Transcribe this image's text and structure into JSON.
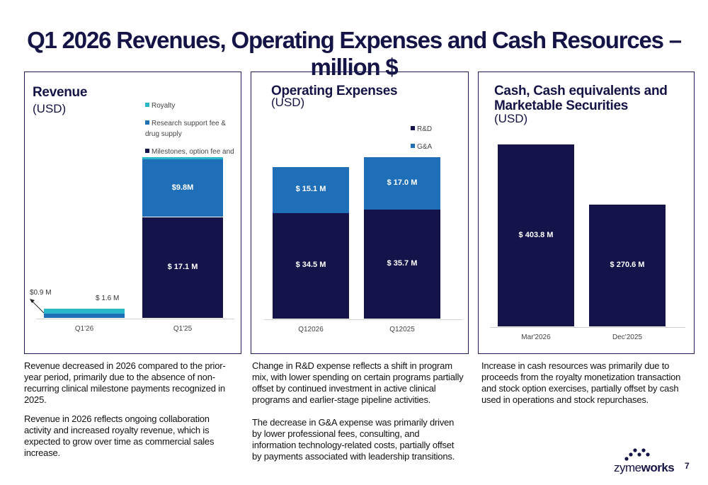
{
  "title": "Q1 2026 Revenues, Operating Expenses and Cash Resources – million $",
  "colors": {
    "navy": "#14134a",
    "blue": "#1f6fb8",
    "cyan": "#2ab7ca"
  },
  "chart_data": [
    {
      "type": "bar",
      "stacked": true,
      "title": "Revenue",
      "subtitle": "(USD)",
      "categories": [
        "Q1'26",
        "Q1'25"
      ],
      "series": [
        {
          "name": "Milestones, option fee and other",
          "values": [
            0,
            17.1
          ],
          "labels": [
            "",
            "$ 17.1 M"
          ],
          "color": "#14134a"
        },
        {
          "name": "Research support fee & drug supply",
          "values": [
            0.7,
            9.8
          ],
          "labels": [
            "",
            "$9.8M"
          ],
          "color": "#1f6fb8"
        },
        {
          "name": "Royalty",
          "values": [
            0.9,
            0.3
          ],
          "labels": [
            "",
            ""
          ],
          "color": "#2ab7ca"
        }
      ],
      "annotations": {
        "royalty_callout": "$0.9 M",
        "q1_26_total": "$ 1.6 M"
      },
      "legend_order": [
        "Royalty",
        "Research support fee & drug supply",
        "Milestones, option fee and other"
      ],
      "legend_position": "top-right",
      "ylim": [
        0,
        30
      ]
    },
    {
      "type": "bar",
      "stacked": true,
      "title": "Operating Expenses",
      "subtitle": "(USD)",
      "categories": [
        "Q12026",
        "Q12025"
      ],
      "series": [
        {
          "name": "R&D",
          "values": [
            34.5,
            35.7
          ],
          "labels": [
            "$ 34.5 M",
            "$ 35.7 M"
          ],
          "color": "#14134a"
        },
        {
          "name": "G&A",
          "values": [
            15.1,
            17.0
          ],
          "labels": [
            "$ 15.1 M",
            "$ 17.0 M"
          ],
          "color": "#1f6fb8"
        }
      ],
      "legend_order": [
        "R&D",
        "G&A"
      ],
      "legend_position": "top-right",
      "ylim": [
        0,
        56
      ]
    },
    {
      "type": "bar",
      "stacked": false,
      "title": "Cash, Cash equivalents and Marketable Securities",
      "subtitle": "(USD)",
      "categories": [
        "Mar'2026",
        "Dec'2025"
      ],
      "series": [
        {
          "name": "",
          "values": [
            403.8,
            270.6
          ],
          "labels": [
            "$ 403.8 M",
            "$ 270.6 M"
          ],
          "color": "#14134a"
        }
      ],
      "ylim": [
        0,
        440
      ]
    }
  ],
  "notes": {
    "revenue": [
      "Revenue decreased in 2026 compared to the prior-year period, primarily due to the absence of non-recurring clinical milestone payments recognized in 2025.",
      "Revenue in 2026 reflects ongoing collaboration activity and increased royalty revenue, which is expected to grow over time as commercial sales increase."
    ],
    "opex": [
      "Change in R&D expense reflects a shift in program mix, with lower spending on certain programs partially offset by continued investment in active clinical programs and earlier-stage pipeline activities.",
      "The decrease in G&A expense was primarily driven by lower professional fees, consulting, and information technology-related costs, partially offset by payments associated with leadership transitions."
    ],
    "cash": [
      "Increase in cash resources was primarily due to proceeds from the royalty monetization transaction and stock option exercises, partially offset by cash used in operations and stock repurchases."
    ]
  },
  "logo": {
    "part1": "zyme",
    "part2": "works",
    "icon": "zymeworks-dots-icon"
  },
  "page_number": "7"
}
